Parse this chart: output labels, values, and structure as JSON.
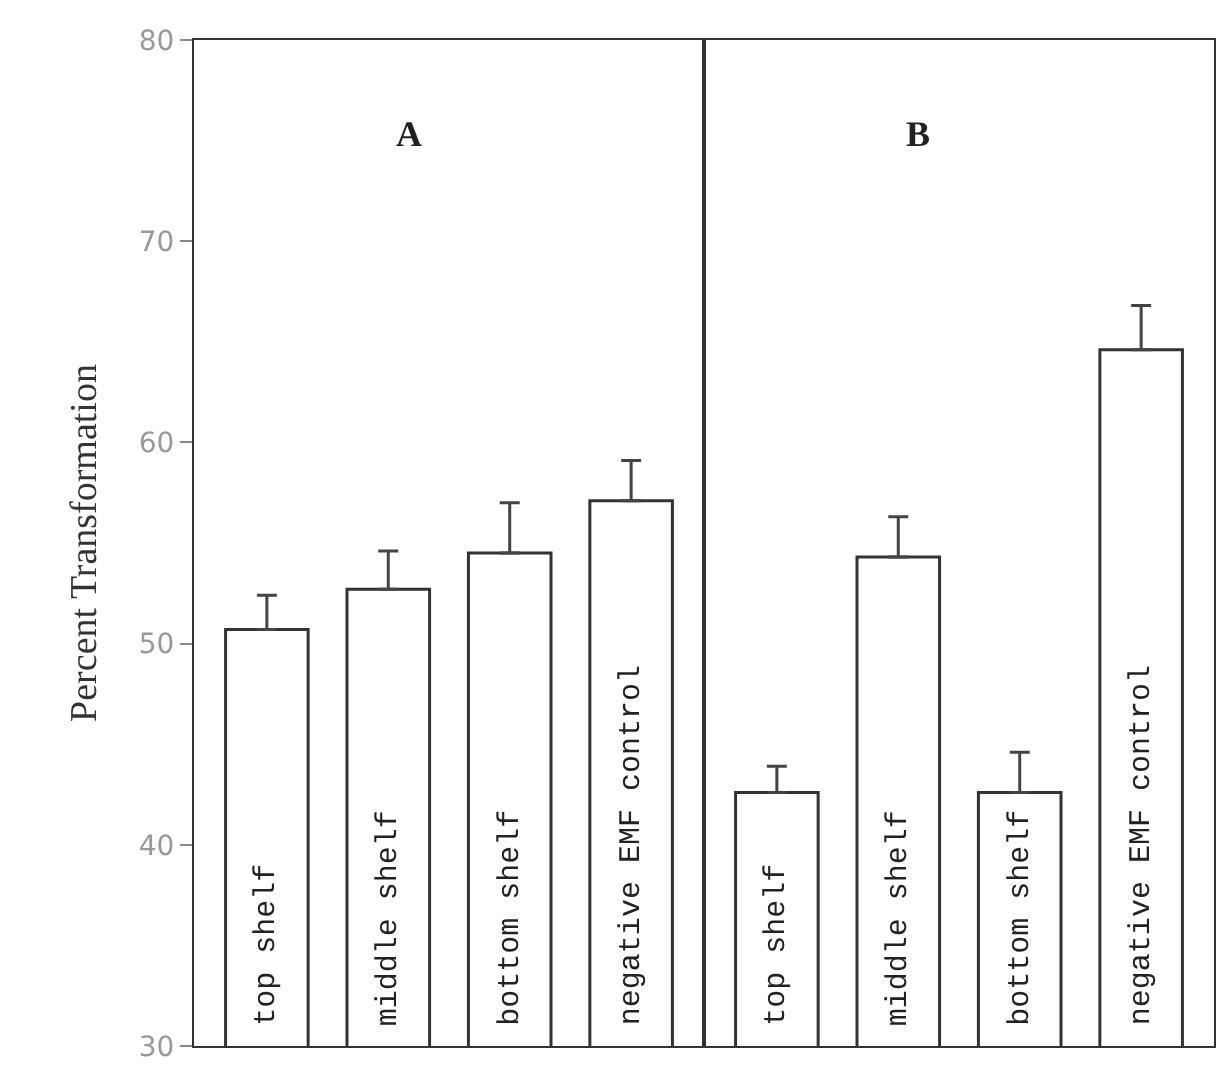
{
  "chart_data": [
    {
      "type": "bar",
      "title": "A",
      "ylabel": "Percent Transformation",
      "categories": [
        "top shelf",
        "middle shelf",
        "bottom shelf",
        "negative EMF control"
      ],
      "values": [
        50.7,
        52.7,
        54.5,
        57.1
      ],
      "errors": [
        [
          50.7,
          52.4
        ],
        [
          52.7,
          54.6
        ],
        [
          54.5,
          57.0
        ],
        [
          57.1,
          59.1
        ]
      ],
      "color": "#ffffff",
      "ylim": [
        30,
        80
      ],
      "yticks": [
        30,
        40,
        50,
        60,
        70,
        80
      ],
      "tick_labels": "y",
      "grid": false
    },
    {
      "type": "bar",
      "title": "B",
      "categories": [
        "top shelf",
        "middle shelf",
        "bottom shelf",
        "negative EMF control"
      ],
      "values": [
        42.6,
        54.3,
        42.6,
        64.6
      ],
      "errors": [
        [
          42.6,
          43.9
        ],
        [
          54.3,
          56.3
        ],
        [
          42.6,
          44.6
        ],
        [
          64.6,
          66.8
        ]
      ],
      "color": "#ffffff",
      "ylim": [
        30,
        80
      ],
      "yticks": [
        30,
        40,
        50,
        60,
        70,
        80
      ],
      "tick_labels": false,
      "grid": false
    }
  ]
}
